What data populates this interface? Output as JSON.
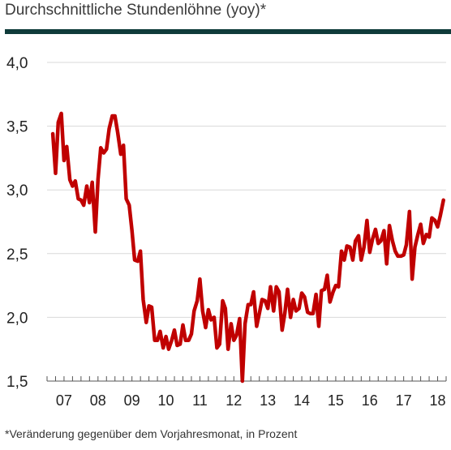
{
  "title": "Durchschnittliche Stundenlöhne (yoy)*",
  "footnote": "*Veränderung gegenüber dem Vorjahresmonat, in Prozent",
  "colors": {
    "line": "#c00000",
    "title_rule": "#0f3b3a",
    "grid": "#d9d9d9"
  },
  "chart_data": {
    "type": "line",
    "title": "Durchschnittliche Stundenlöhne (yoy)*",
    "xlabel": "",
    "ylabel": "",
    "ylim": [
      1.5,
      4.0
    ],
    "xlim": [
      2007.0,
      2018.75
    ],
    "grid": true,
    "legend": "none",
    "y_ticks": [
      {
        "value": 1.5,
        "label": "1,5"
      },
      {
        "value": 2.0,
        "label": "2,0"
      },
      {
        "value": 2.5,
        "label": "2,5"
      },
      {
        "value": 3.0,
        "label": "3,0"
      },
      {
        "value": 3.5,
        "label": "3,5"
      },
      {
        "value": 4.0,
        "label": "4,0"
      }
    ],
    "x_ticks": [
      {
        "value": 2007,
        "label": "07"
      },
      {
        "value": 2008,
        "label": "08"
      },
      {
        "value": 2009,
        "label": "09"
      },
      {
        "value": 2010,
        "label": "10"
      },
      {
        "value": 2011,
        "label": "11"
      },
      {
        "value": 2012,
        "label": "12"
      },
      {
        "value": 2013,
        "label": "13"
      },
      {
        "value": 2014,
        "label": "14"
      },
      {
        "value": 2015,
        "label": "15"
      },
      {
        "value": 2016,
        "label": "16"
      },
      {
        "value": 2017,
        "label": "17"
      },
      {
        "value": 2018,
        "label": "18"
      }
    ],
    "series": [
      {
        "x": [
          2007.17,
          2007.25,
          2007.33,
          2007.42,
          2007.5,
          2007.58,
          2007.67,
          2007.75,
          2007.83,
          2007.92,
          2008.0,
          2008.08,
          2008.17,
          2008.25,
          2008.33,
          2008.42,
          2008.5,
          2008.58,
          2008.67,
          2008.75,
          2008.83,
          2008.92,
          2009.0,
          2009.08,
          2009.17,
          2009.25,
          2009.33,
          2009.42,
          2009.5,
          2009.58,
          2009.67,
          2009.75,
          2009.83,
          2009.92,
          2010.0,
          2010.08,
          2010.17,
          2010.25,
          2010.33,
          2010.42,
          2010.5,
          2010.58,
          2010.67,
          2010.75,
          2010.83,
          2010.92,
          2011.0,
          2011.08,
          2011.17,
          2011.25,
          2011.33,
          2011.42,
          2011.5,
          2011.58,
          2011.67,
          2011.75,
          2011.83,
          2011.92,
          2012.0,
          2012.08,
          2012.17,
          2012.25,
          2012.33,
          2012.42,
          2012.5,
          2012.58,
          2012.67,
          2012.75,
          2012.83,
          2012.92,
          2013.0,
          2013.08,
          2013.17,
          2013.25,
          2013.33,
          2013.42,
          2013.5,
          2013.58,
          2013.67,
          2013.75,
          2013.83,
          2013.92,
          2014.0,
          2014.08,
          2014.17,
          2014.25,
          2014.33,
          2014.42,
          2014.5,
          2014.58,
          2014.67,
          2014.75,
          2014.83,
          2014.92,
          2015.0,
          2015.08,
          2015.17,
          2015.25,
          2015.33,
          2015.42,
          2015.5,
          2015.58,
          2015.67,
          2015.75,
          2015.83,
          2015.92,
          2016.0,
          2016.08,
          2016.17,
          2016.25,
          2016.33,
          2016.42,
          2016.5,
          2016.58,
          2016.67,
          2016.75,
          2016.83,
          2016.92,
          2017.0,
          2017.08,
          2017.17,
          2017.25,
          2017.33,
          2017.42,
          2017.5,
          2017.58,
          2017.67,
          2017.75,
          2017.83,
          2017.92,
          2018.0,
          2018.08,
          2018.17,
          2018.25,
          2018.33,
          2018.42,
          2018.5,
          2018.58,
          2018.67
        ],
        "values": [
          3.44,
          3.13,
          3.53,
          3.6,
          3.23,
          3.34,
          3.08,
          3.03,
          3.07,
          2.93,
          2.92,
          2.88,
          3.03,
          2.9,
          3.06,
          2.67,
          3.08,
          3.33,
          3.29,
          3.32,
          3.48,
          3.58,
          3.58,
          3.45,
          3.28,
          3.35,
          2.93,
          2.88,
          2.68,
          2.45,
          2.44,
          2.52,
          2.14,
          1.96,
          2.09,
          2.08,
          1.82,
          1.82,
          1.89,
          1.76,
          1.85,
          1.75,
          1.82,
          1.9,
          1.78,
          1.79,
          1.94,
          1.82,
          1.82,
          1.87,
          2.05,
          2.13,
          2.3,
          2.05,
          1.92,
          2.06,
          1.98,
          2.0,
          1.76,
          1.79,
          2.13,
          2.07,
          1.75,
          1.95,
          1.82,
          1.86,
          1.99,
          1.5,
          1.95,
          2.1,
          2.1,
          2.2,
          1.93,
          2.03,
          2.14,
          2.13,
          2.07,
          2.24,
          2.05,
          2.24,
          2.2,
          1.9,
          2.03,
          2.22,
          2.0,
          2.14,
          2.05,
          2.07,
          2.19,
          2.16,
          2.04,
          2.03,
          2.03,
          2.18,
          1.93,
          2.21,
          2.22,
          2.33,
          2.12,
          2.2,
          2.25,
          2.24,
          2.52,
          2.45,
          2.56,
          2.55,
          2.45,
          2.6,
          2.64,
          2.45,
          2.55,
          2.76,
          2.51,
          2.61,
          2.69,
          2.58,
          2.6,
          2.68,
          2.42,
          2.72,
          2.6,
          2.52,
          2.48,
          2.48,
          2.49,
          2.57,
          2.83,
          2.3,
          2.55,
          2.65,
          2.73,
          2.58,
          2.65,
          2.63,
          2.78,
          2.76,
          2.71,
          2.8,
          2.92
        ]
      }
    ]
  }
}
